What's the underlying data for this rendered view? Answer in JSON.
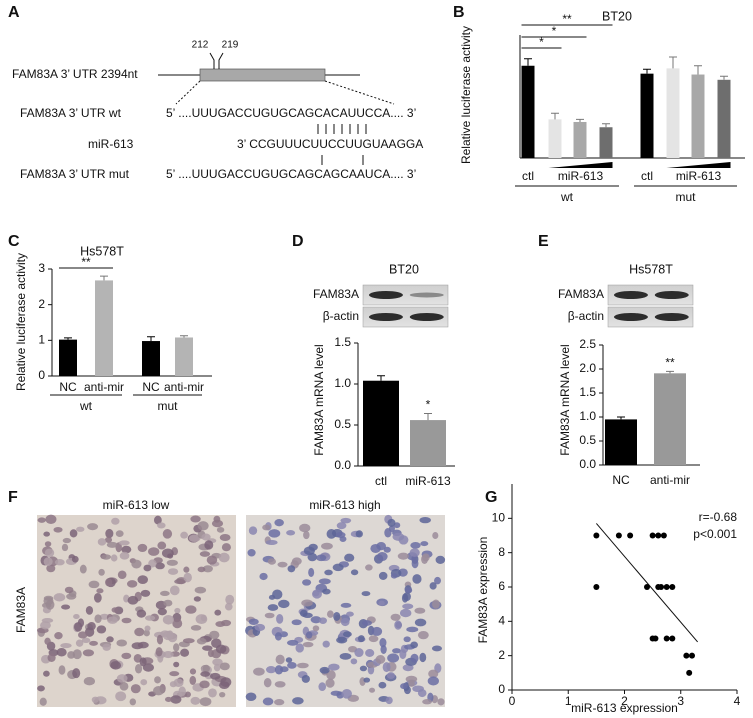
{
  "panel_a": {
    "label": "A",
    "utr_label": "FAM83A 3’ UTR 2394nt",
    "pos1": 212,
    "pos2": 219,
    "wt_label": "FAM83A 3’ UTR wt",
    "wt_seq": "5’ ....UUUGACCUGUGCAGCACAUUCCA.... 3’",
    "mir_label": "miR-613",
    "mir_seq": "3’ CCGUUUCUUCCUUGUAAGGA",
    "mut_label": "FAM83A 3’ UTR mut",
    "mut_seq": "5’ ....UUUGACCUGUGCAGCAGCAAUCA.... 3’"
  },
  "panel_f": {
    "label": "F",
    "low": "miR-613 low",
    "high": "miR-613 high",
    "ylabel": "FAM83A"
  },
  "chart_data": [
    {
      "type": "bar",
      "panel": "B",
      "title": "BT20",
      "ylabel": "Relative luciferase activity",
      "categories": [
        "ctl",
        null,
        null,
        null,
        "ctl",
        null,
        null,
        null
      ],
      "values": [
        1.05,
        0.44,
        0.41,
        0.35,
        0.96,
        1.02,
        0.95,
        0.89
      ],
      "errors": [
        0.08,
        0.07,
        0.03,
        0.04,
        0.05,
        0.13,
        0.1,
        0.04
      ],
      "colors": [
        "#000000",
        "#e4e4e4",
        "#a8a8a8",
        "#6e6e6e",
        "#000000",
        "#e4e4e4",
        "#a8a8a8",
        "#6e6e6e"
      ],
      "dose_labels": [
        "miR-613",
        "miR-613"
      ],
      "groups": [
        "wt",
        "mut"
      ],
      "significance": [
        "*",
        "*",
        "**"
      ],
      "ylim": [
        0,
        1.4
      ]
    },
    {
      "type": "bar",
      "panel": "C",
      "title": "Hs578T",
      "ylabel": "Relative luciferase activity",
      "categories": [
        "NC",
        "anti-mir",
        "NC",
        "anti-mir"
      ],
      "values": [
        1.02,
        2.68,
        0.98,
        1.08
      ],
      "errors": [
        0.05,
        0.12,
        0.12,
        0.05
      ],
      "colors": [
        "#000000",
        "#b4b4b4",
        "#000000",
        "#b4b4b4"
      ],
      "groups": [
        "wt",
        "mut"
      ],
      "significance": [
        "**"
      ],
      "ylim": [
        0,
        3
      ],
      "yticks": [
        0,
        1,
        2,
        3
      ]
    },
    {
      "type": "bar",
      "panel": "D",
      "title": "BT20",
      "ylabel": "FAM83A mRNA level",
      "blot_labels": [
        "FAM83A",
        "β-actin"
      ],
      "categories": [
        "ctl",
        "miR-613"
      ],
      "values": [
        1.04,
        0.56
      ],
      "errors": [
        0.06,
        0.08
      ],
      "colors": [
        "#000000",
        "#999999"
      ],
      "significance": [
        "*"
      ],
      "ylim": [
        0,
        1.5
      ],
      "yticks": [
        {
          "value": 0,
          "label": "0.0"
        },
        {
          "value": 0.5,
          "label": "0.5"
        },
        {
          "value": 1,
          "label": "1.0"
        },
        {
          "value": 1.5,
          "label": "1.5"
        }
      ]
    },
    {
      "type": "bar",
      "panel": "E",
      "title": "Hs578T",
      "ylabel": "FAM83A mRNA level",
      "blot_labels": [
        "FAM83A",
        "β-actin"
      ],
      "categories": [
        "NC",
        "anti-mir"
      ],
      "values": [
        0.95,
        1.91
      ],
      "errors": [
        0.05,
        0.04
      ],
      "colors": [
        "#000000",
        "#999999"
      ],
      "significance": [
        "**"
      ],
      "ylim": [
        0,
        2.5
      ],
      "yticks": [
        {
          "value": 0,
          "label": "0.0"
        },
        {
          "value": 0.5,
          "label": "0.5"
        },
        {
          "value": 1,
          "label": "1.0"
        },
        {
          "value": 1.5,
          "label": "1.5"
        },
        {
          "value": 2,
          "label": "2.0"
        },
        {
          "value": 2.5,
          "label": "2.5"
        }
      ]
    },
    {
      "type": "scatter",
      "panel": "G",
      "xlabel": "miR-613 expression",
      "ylabel": "FAM83A expression",
      "annotations": [
        "r=-0.68",
        "p<0.001"
      ],
      "color": "#000000",
      "x": [
        1.5,
        1.5,
        1.9,
        2.1,
        2.4,
        2.5,
        2.6,
        2.5,
        2.55,
        2.6,
        2.65,
        2.7,
        2.75,
        2.75,
        2.85,
        2.85,
        3.1,
        3.2,
        3.15
      ],
      "y": [
        9,
        6,
        9,
        9,
        6,
        9,
        9,
        3,
        3,
        6,
        6,
        9,
        6,
        3,
        3,
        6,
        2,
        2,
        1
      ],
      "trendline": {
        "x": [
          1.5,
          3.3
        ],
        "y": [
          9.7,
          2.8
        ]
      },
      "xlim": [
        0,
        4
      ],
      "xticks": [
        0,
        1,
        2,
        3,
        4
      ],
      "ylim": [
        0,
        12
      ],
      "yticks": [
        0,
        2,
        4,
        6,
        8,
        10
      ]
    }
  ]
}
